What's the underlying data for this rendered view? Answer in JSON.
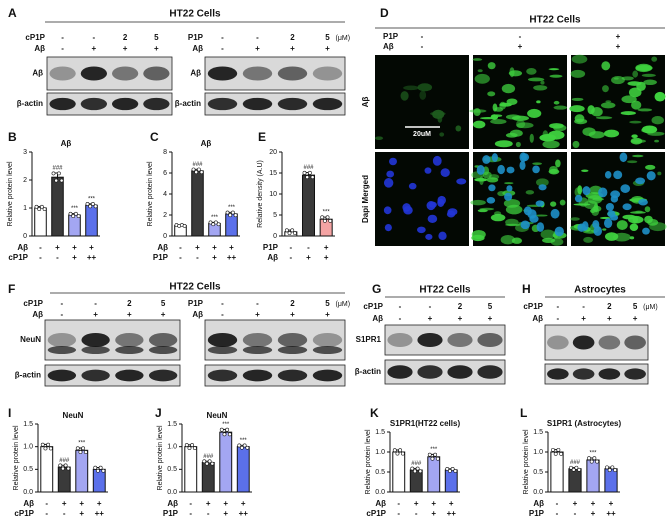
{
  "blot_panels": [
    {
      "label": "A",
      "title": "HT22 Cells",
      "blots": [
        {
          "conditions": [
            {
              "name": "cP1P",
              "values": [
                "-",
                "-",
                "2",
                "5"
              ]
            },
            {
              "name": "Aβ",
              "values": [
                "-",
                "+",
                "+",
                "+"
              ]
            }
          ],
          "bands": [
            "Aβ",
            "β-actin"
          ]
        },
        {
          "conditions": [
            {
              "name": "P1P",
              "values": [
                "-",
                "-",
                "2",
                "5"
              ]
            },
            {
              "name": "Aβ",
              "values": [
                "-",
                "+",
                "+",
                "+"
              ]
            }
          ],
          "unit": "(μM)",
          "bands": [
            "Aβ",
            "β-actin"
          ]
        }
      ]
    },
    {
      "label": "F",
      "title": "HT22 Cells",
      "blots": [
        {
          "conditions": [
            {
              "name": "cP1P",
              "values": [
                "-",
                "-",
                "2",
                "5"
              ]
            },
            {
              "name": "Aβ",
              "values": [
                "-",
                "+",
                "+",
                "+"
              ]
            }
          ],
          "bands": [
            "NeuN",
            "β-actin"
          ]
        },
        {
          "conditions": [
            {
              "name": "P1P",
              "values": [
                "-",
                "-",
                "2",
                "5"
              ]
            },
            {
              "name": "Aβ",
              "values": [
                "-",
                "+",
                "+",
                "+"
              ]
            }
          ],
          "unit": "(μM)"
        }
      ]
    },
    {
      "label": "G",
      "title": "HT22 Cells",
      "blots": [
        {
          "conditions": [
            {
              "name": "cP1P",
              "values": [
                "-",
                "-",
                "2",
                "5"
              ]
            },
            {
              "name": "Aβ",
              "values": [
                "-",
                "+",
                "+",
                "+"
              ]
            }
          ],
          "bands": [
            "S1PR1",
            "β-actin"
          ]
        }
      ]
    },
    {
      "label": "H",
      "title": "Astrocytes",
      "blots": [
        {
          "conditions": [
            {
              "name": "cP1P",
              "values": [
                "-",
                "-",
                "2",
                "5"
              ]
            },
            {
              "name": "Aβ",
              "values": [
                "-",
                "+",
                "+",
                "+"
              ]
            }
          ],
          "unit": "(μM)"
        }
      ]
    }
  ],
  "image_panel": {
    "label": "D",
    "title": "HT22 Cells",
    "conditions": [
      {
        "name": "P1P",
        "values": [
          "-",
          "-",
          "+"
        ]
      },
      {
        "name": "Aβ",
        "values": [
          "-",
          "+",
          "+"
        ]
      }
    ],
    "rows": [
      "Aβ",
      "Dapi Merged"
    ],
    "scale_bar": "20uM"
  },
  "chart_data": [
    {
      "type": "bar",
      "label": "B",
      "title": "Aβ",
      "ylabel": "Relative protein level",
      "values": [
        1.0,
        2.1,
        0.75,
        1.1
      ],
      "errors": [
        0.05,
        0.15,
        0.05,
        0.05
      ],
      "annotations": [
        null,
        "###",
        "***",
        "***"
      ],
      "colors": [
        "#ffffff",
        "#3a3a3a",
        "#a3a6f2",
        "#5b70ea"
      ],
      "conditions": [
        {
          "name": "Aβ",
          "values": [
            "-",
            "+",
            "+",
            "+"
          ]
        },
        {
          "name": "cP1P",
          "values": [
            "-",
            "-",
            "+",
            "++"
          ]
        }
      ],
      "ylim": [
        0,
        3
      ],
      "yticks": [
        0,
        1,
        2,
        3
      ]
    },
    {
      "type": "bar",
      "label": "C",
      "title": "Aβ",
      "ylabel": "Relative protein level",
      "values": [
        1.0,
        6.2,
        1.2,
        2.1
      ],
      "errors": [
        0.05,
        0.15,
        0.1,
        0.15
      ],
      "annotations": [
        null,
        "###",
        "***",
        "***"
      ],
      "colors": [
        "#ffffff",
        "#3a3a3a",
        "#a3a6f2",
        "#5b70ea"
      ],
      "conditions": [
        {
          "name": "Aβ",
          "values": [
            "-",
            "+",
            "+",
            "+"
          ]
        },
        {
          "name": "P1P",
          "values": [
            "-",
            "-",
            "+",
            "++"
          ]
        }
      ],
      "ylim": [
        0,
        8
      ],
      "yticks": [
        0,
        2,
        4,
        6,
        8
      ]
    },
    {
      "type": "bar",
      "label": "E",
      "ylabel": "Relative density (A.U)",
      "values": [
        1.0,
        14.5,
        4.0
      ],
      "errors": [
        0.4,
        0.6,
        0.5
      ],
      "annotations": [
        null,
        "###",
        "***"
      ],
      "colors": [
        "#ffffff",
        "#3a3a3a",
        "#f4a3a3"
      ],
      "conditions": [
        {
          "name": "P1P",
          "values": [
            "-",
            "-",
            "+"
          ]
        },
        {
          "name": "Aβ",
          "values": [
            "-",
            "+",
            "+"
          ]
        }
      ],
      "ylim": [
        0,
        20
      ],
      "yticks": [
        0,
        5,
        10,
        15,
        20
      ]
    },
    {
      "type": "bar",
      "label": "I",
      "title": "NeuN",
      "ylabel": "Relative protein level",
      "values": [
        1.0,
        0.55,
        0.92,
        0.5
      ],
      "errors": [
        0.05,
        0.04,
        0.05,
        0.04
      ],
      "annotations": [
        null,
        "###",
        "***",
        null
      ],
      "colors": [
        "#ffffff",
        "#3a3a3a",
        "#a3a6f2",
        "#5b70ea"
      ],
      "conditions": [
        {
          "name": "Aβ",
          "values": [
            "-",
            "+",
            "+",
            "+"
          ]
        },
        {
          "name": "cP1P",
          "values": [
            "-",
            "-",
            "+",
            "++"
          ]
        }
      ],
      "ylim": [
        0,
        1.5
      ],
      "yticks": [
        {
          "value": 0,
          "label": "0.0"
        },
        0.5,
        {
          "value": 1,
          "label": "1.0"
        },
        1.5
      ]
    },
    {
      "type": "bar",
      "label": "J",
      "title": "NeuN",
      "ylabel": "Relative protein level",
      "values": [
        1.0,
        0.65,
        1.32,
        1.0
      ],
      "errors": [
        0.04,
        0.03,
        0.06,
        0.03
      ],
      "annotations": [
        null,
        "###",
        "***",
        "***"
      ],
      "colors": [
        "#ffffff",
        "#3a3a3a",
        "#a3a6f2",
        "#5b70ea"
      ],
      "conditions": [
        {
          "name": "Aβ",
          "values": [
            "-",
            "+",
            "+",
            "+"
          ]
        },
        {
          "name": "P1P",
          "values": [
            "-",
            "-",
            "+",
            "++"
          ]
        }
      ],
      "ylim": [
        0,
        1.5
      ],
      "yticks": [
        {
          "value": 0,
          "label": "0.0"
        },
        0.5,
        {
          "value": 1,
          "label": "1.0"
        },
        1.5
      ]
    },
    {
      "type": "bar",
      "label": "K",
      "title": "S1PR1(HT22 cells)",
      "ylabel": "Relative protein level",
      "values": [
        1.0,
        0.55,
        0.88,
        0.55
      ],
      "errors": [
        0.05,
        0.04,
        0.06,
        0.03
      ],
      "annotations": [
        null,
        "###",
        "***",
        null
      ],
      "colors": [
        "#ffffff",
        "#3a3a3a",
        "#a3a6f2",
        "#5b70ea"
      ],
      "conditions": [
        {
          "name": "Aβ",
          "values": [
            "-",
            "+",
            "+",
            "+"
          ]
        },
        {
          "name": "cP1P",
          "values": [
            "-",
            "-",
            "+",
            "++"
          ]
        }
      ],
      "ylim": [
        0,
        1.5
      ],
      "yticks": [
        {
          "value": 0,
          "label": "0.0"
        },
        0.5,
        {
          "value": 1,
          "label": "1.0"
        },
        1.5
      ]
    },
    {
      "type": "bar",
      "label": "L",
      "title": "S1PR1 (Astrocytes)",
      "ylabel": "Relative protein level",
      "values": [
        1.0,
        0.58,
        0.8,
        0.58
      ],
      "errors": [
        0.06,
        0.03,
        0.05,
        0.04
      ],
      "annotations": [
        null,
        "###",
        "***",
        null
      ],
      "colors": [
        "#ffffff",
        "#3a3a3a",
        "#a3a6f2",
        "#5b70ea"
      ],
      "conditions": [
        {
          "name": "Aβ",
          "values": [
            "-",
            "+",
            "+",
            "+"
          ]
        },
        {
          "name": "P1P",
          "values": [
            "-",
            "-",
            "+",
            "++"
          ]
        }
      ],
      "ylim": [
        0,
        1.5
      ],
      "yticks": [
        {
          "value": 0,
          "label": "0.0"
        },
        0.5,
        {
          "value": 1,
          "label": "1.0"
        },
        1.5
      ]
    }
  ]
}
